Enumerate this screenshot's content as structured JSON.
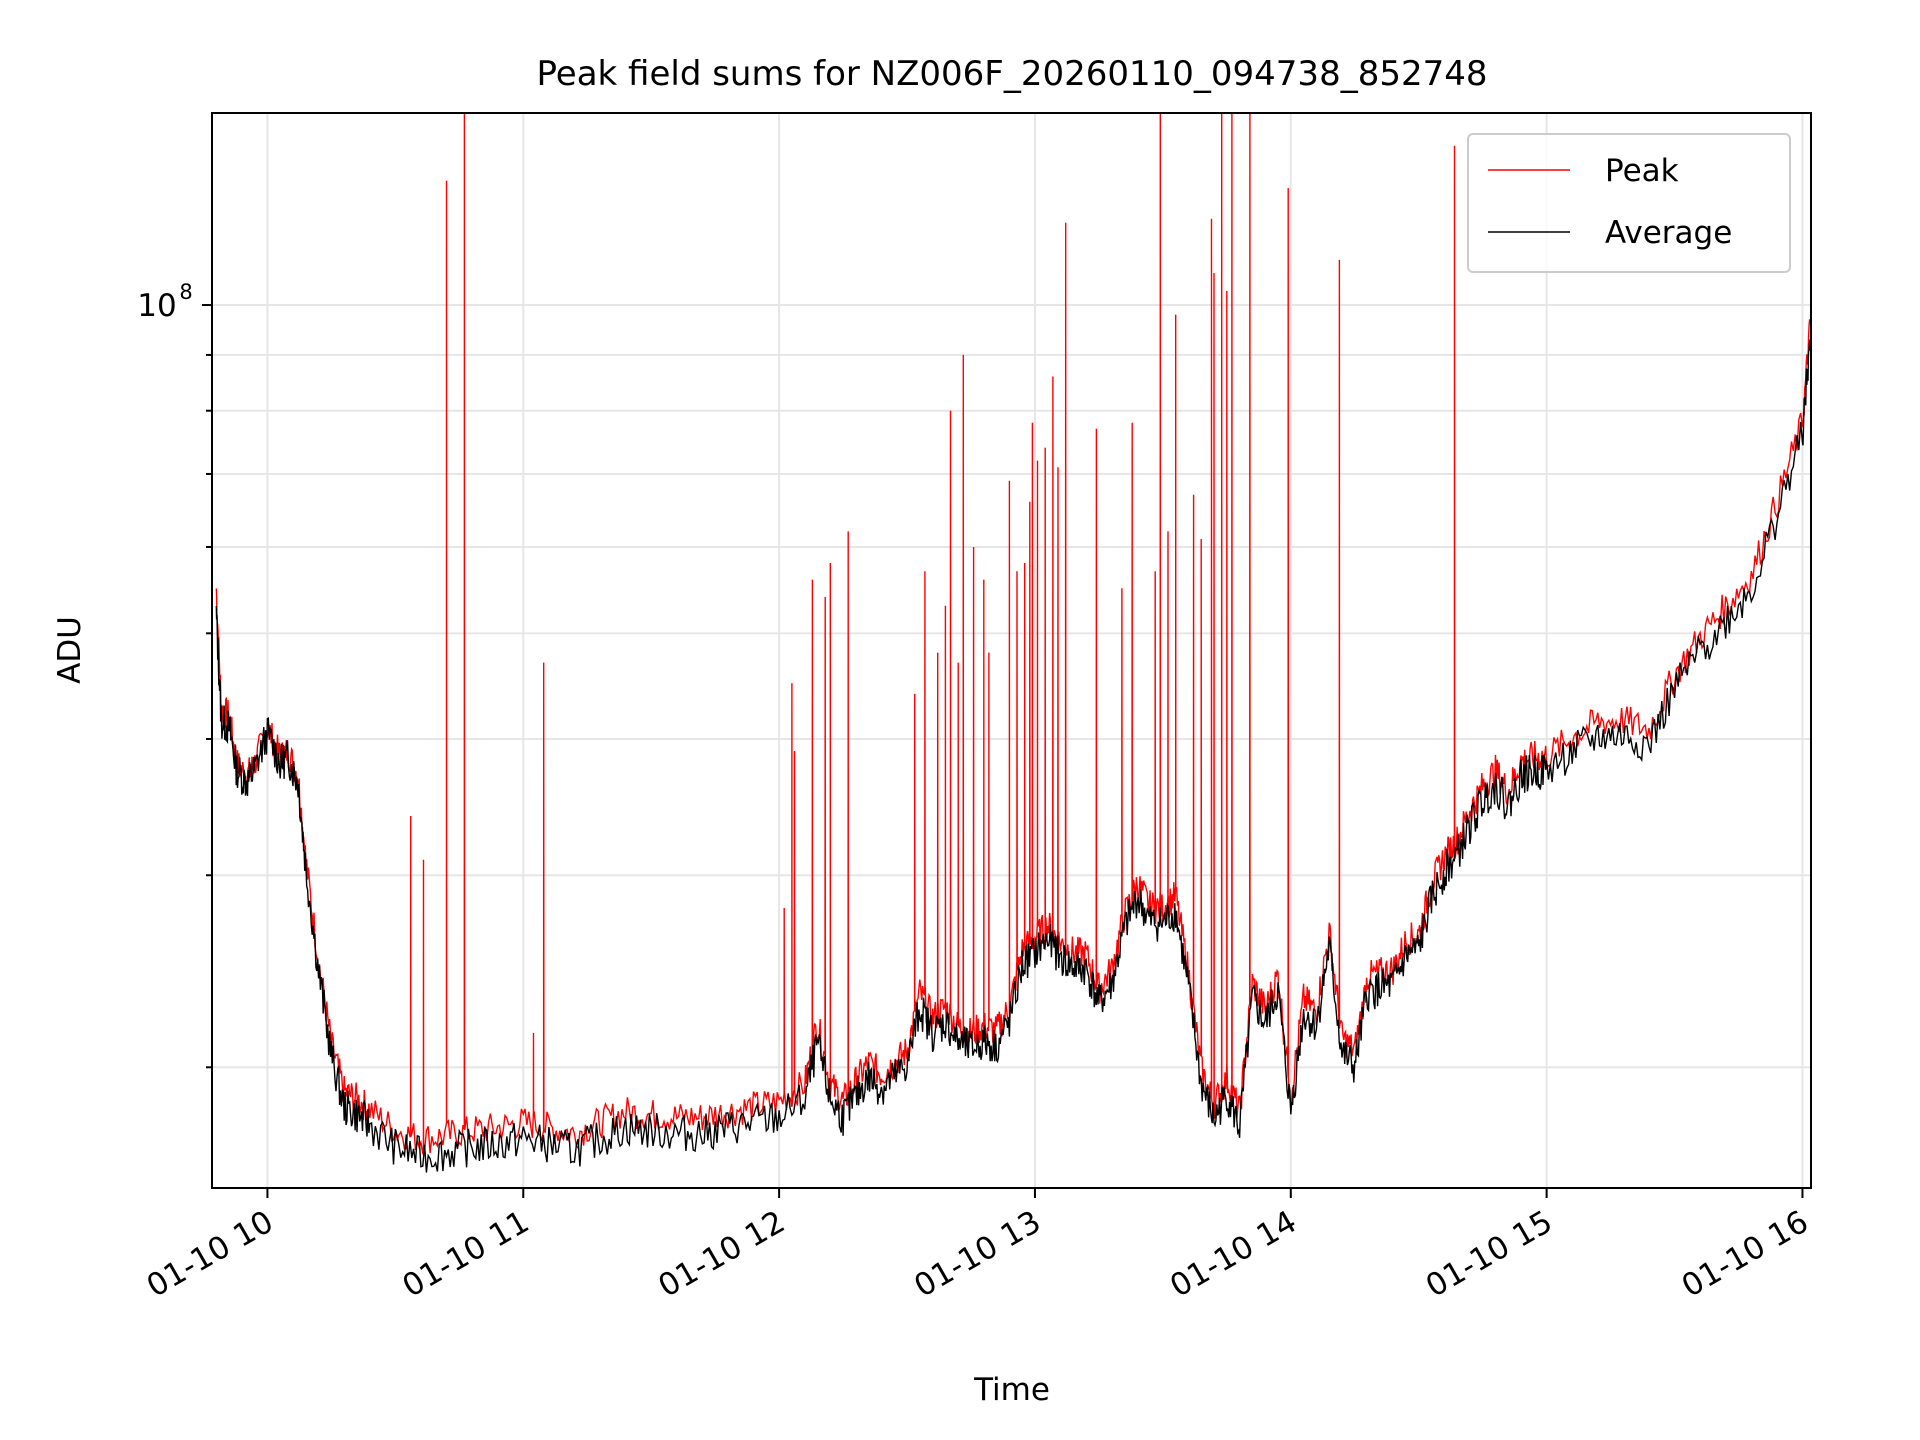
{
  "chart_data": {
    "type": "line",
    "title": "Peak field sums for NZ006F_20260110_094738_852748",
    "xlabel": "Time",
    "ylabel": "ADU",
    "yscale": "log",
    "x_unit": "hours (clock time on 2026-01-10)",
    "xlim": [
      "01-10 09:47",
      "01-10 16:02"
    ],
    "ylim": [
      15500000,
      150000000
    ],
    "x_ticks": [
      "01-10 10",
      "01-10 11",
      "01-10 12",
      "01-10 13",
      "01-10 14",
      "01-10 15",
      "01-10 16"
    ],
    "y_ticks": [
      {
        "value": 100000000,
        "base": "10",
        "exp": "8"
      }
    ],
    "grid": true,
    "legend_position": "top-right",
    "colors": {
      "peak": "#ff0000",
      "average": "#000000"
    },
    "series": [
      {
        "name": "Peak",
        "color": "#ff0000",
        "x": [
          9.8,
          9.82,
          9.85,
          9.88,
          9.92,
          9.95,
          10.0,
          10.05,
          10.08,
          10.12,
          10.15,
          10.2,
          10.25,
          10.3,
          10.35,
          10.4,
          10.5,
          10.6,
          10.7,
          10.8,
          10.9,
          11.0,
          11.1,
          11.2,
          11.3,
          11.4,
          11.5,
          11.6,
          11.7,
          11.8,
          11.9,
          12.0,
          12.1,
          12.15,
          12.2,
          12.25,
          12.3,
          12.35,
          12.4,
          12.45,
          12.5,
          12.55,
          12.6,
          12.65,
          12.7,
          12.75,
          12.8,
          12.85,
          12.9,
          12.95,
          13.0,
          13.05,
          13.1,
          13.15,
          13.2,
          13.25,
          13.3,
          13.35,
          13.4,
          13.45,
          13.5,
          13.55,
          13.6,
          13.65,
          13.7,
          13.75,
          13.8,
          13.85,
          13.9,
          13.95,
          14.0,
          14.05,
          14.1,
          14.15,
          14.2,
          14.25,
          14.3,
          14.35,
          14.4,
          14.45,
          14.5,
          14.55,
          14.6,
          14.65,
          14.7,
          14.75,
          14.8,
          14.85,
          14.9,
          14.95,
          15.0,
          15.1,
          15.2,
          15.3,
          15.4,
          15.5,
          15.6,
          15.7,
          15.8,
          15.9,
          16.0,
          16.03
        ],
        "y": [
          55000000,
          42500000,
          42000000,
          38000000,
          37000000,
          38000000,
          41000000,
          38500000,
          39000000,
          37000000,
          31000000,
          25000000,
          21000000,
          19000000,
          18700000,
          18300000,
          17500000,
          17200000,
          17300000,
          17500000,
          17600000,
          17800000,
          17600000,
          17400000,
          17800000,
          18200000,
          18100000,
          18000000,
          18000000,
          18200000,
          18400000,
          18600000,
          19300000,
          22000000,
          19300000,
          18600000,
          19400000,
          20200000,
          19700000,
          20200000,
          20700000,
          23400000,
          22200000,
          22700000,
          21800000,
          21500000,
          21800000,
          21600000,
          22700000,
          25600000,
          26300000,
          27000000,
          26000000,
          25500000,
          25400000,
          23600000,
          24600000,
          27600000,
          29500000,
          28100000,
          28000000,
          28700000,
          24500000,
          19900000,
          18500000,
          19500000,
          18200000,
          23900000,
          22600000,
          24300000,
          18800000,
          23100000,
          22500000,
          26600000,
          21300000,
          20700000,
          24200000,
          24400000,
          24600000,
          26100000,
          26500000,
          29400000,
          31200000,
          32300000,
          34400000,
          36200000,
          37400000,
          35800000,
          38200000,
          38500000,
          38600000,
          40100000,
          41500000,
          41600000,
          40800000,
          45800000,
          49600000,
          52900000,
          56500000,
          66000000,
          78000000,
          96000000
        ],
        "spikes": [
          {
            "x": 10.56,
            "y": 34000000
          },
          {
            "x": 10.61,
            "y": 31000000
          },
          {
            "x": 10.7,
            "y": 130000000
          },
          {
            "x": 10.77,
            "y": 150000000
          },
          {
            "x": 11.04,
            "y": 21500000
          },
          {
            "x": 11.08,
            "y": 47000000
          },
          {
            "x": 12.02,
            "y": 28000000
          },
          {
            "x": 12.05,
            "y": 45000000
          },
          {
            "x": 12.06,
            "y": 39000000
          },
          {
            "x": 12.13,
            "y": 56000000
          },
          {
            "x": 12.18,
            "y": 54000000
          },
          {
            "x": 12.2,
            "y": 58000000
          },
          {
            "x": 12.27,
            "y": 62000000
          },
          {
            "x": 12.53,
            "y": 44000000
          },
          {
            "x": 12.57,
            "y": 57000000
          },
          {
            "x": 12.62,
            "y": 48000000
          },
          {
            "x": 12.65,
            "y": 53000000
          },
          {
            "x": 12.67,
            "y": 80000000
          },
          {
            "x": 12.7,
            "y": 47000000
          },
          {
            "x": 12.72,
            "y": 90000000
          },
          {
            "x": 12.76,
            "y": 60000000
          },
          {
            "x": 12.8,
            "y": 56000000
          },
          {
            "x": 12.82,
            "y": 48000000
          },
          {
            "x": 12.9,
            "y": 69000000
          },
          {
            "x": 12.93,
            "y": 57000000
          },
          {
            "x": 12.96,
            "y": 58000000
          },
          {
            "x": 12.98,
            "y": 66000000
          },
          {
            "x": 12.99,
            "y": 78000000
          },
          {
            "x": 13.01,
            "y": 72000000
          },
          {
            "x": 13.04,
            "y": 74000000
          },
          {
            "x": 13.07,
            "y": 86000000
          },
          {
            "x": 13.09,
            "y": 71000000
          },
          {
            "x": 13.12,
            "y": 119000000
          },
          {
            "x": 13.24,
            "y": 77000000
          },
          {
            "x": 13.34,
            "y": 55000000
          },
          {
            "x": 13.38,
            "y": 78000000
          },
          {
            "x": 13.47,
            "y": 57000000
          },
          {
            "x": 13.49,
            "y": 150000000
          },
          {
            "x": 13.52,
            "y": 62000000
          },
          {
            "x": 13.55,
            "y": 98000000
          },
          {
            "x": 13.62,
            "y": 67000000
          },
          {
            "x": 13.65,
            "y": 61000000
          },
          {
            "x": 13.69,
            "y": 120000000
          },
          {
            "x": 13.7,
            "y": 107000000
          },
          {
            "x": 13.73,
            "y": 150000000
          },
          {
            "x": 13.75,
            "y": 103000000
          },
          {
            "x": 13.77,
            "y": 150000000
          },
          {
            "x": 13.84,
            "y": 150000000
          },
          {
            "x": 13.99,
            "y": 128000000
          },
          {
            "x": 14.19,
            "y": 110000000
          },
          {
            "x": 14.64,
            "y": 140000000
          }
        ]
      },
      {
        "name": "Average",
        "color": "#000000",
        "x": [
          9.8,
          9.82,
          9.85,
          9.88,
          9.92,
          9.95,
          10.0,
          10.05,
          10.08,
          10.12,
          10.15,
          10.2,
          10.25,
          10.3,
          10.35,
          10.4,
          10.5,
          10.6,
          10.7,
          10.8,
          10.9,
          11.0,
          11.1,
          11.2,
          11.3,
          11.4,
          11.5,
          11.6,
          11.7,
          11.8,
          11.9,
          12.0,
          12.1,
          12.15,
          12.2,
          12.25,
          12.3,
          12.35,
          12.4,
          12.45,
          12.5,
          12.55,
          12.6,
          12.65,
          12.7,
          12.75,
          12.8,
          12.85,
          12.9,
          12.95,
          13.0,
          13.05,
          13.1,
          13.15,
          13.2,
          13.25,
          13.3,
          13.35,
          13.4,
          13.45,
          13.5,
          13.55,
          13.6,
          13.65,
          13.7,
          13.75,
          13.8,
          13.85,
          13.9,
          13.95,
          14.0,
          14.05,
          14.1,
          14.15,
          14.2,
          14.25,
          14.3,
          14.35,
          14.4,
          14.45,
          14.5,
          14.55,
          14.6,
          14.65,
          14.7,
          14.75,
          14.8,
          14.85,
          14.9,
          14.95,
          15.0,
          15.1,
          15.2,
          15.3,
          15.4,
          15.5,
          15.6,
          15.7,
          15.8,
          15.9,
          16.0,
          16.03
        ],
        "y": [
          52000000,
          41500000,
          41000000,
          37500000,
          36500000,
          37500000,
          40500000,
          38000000,
          38500000,
          36500000,
          30500000,
          24500000,
          20500000,
          18400000,
          18100000,
          17700000,
          16900000,
          16600000,
          16700000,
          16900000,
          17000000,
          17200000,
          17000000,
          16800000,
          17200000,
          17600000,
          17500000,
          17400000,
          17400000,
          17600000,
          17800000,
          18000000,
          18700000,
          21000000,
          18700000,
          18000000,
          18800000,
          19600000,
          19100000,
          19600000,
          20100000,
          22700000,
          21500000,
          22000000,
          21100000,
          20800000,
          21100000,
          20900000,
          22000000,
          24800000,
          25500000,
          26200000,
          25200000,
          24700000,
          24600000,
          22900000,
          23800000,
          26800000,
          28600000,
          27200000,
          27100000,
          27800000,
          23700000,
          19300000,
          17900000,
          18900000,
          17600000,
          23100000,
          21900000,
          23500000,
          18200000,
          22400000,
          21800000,
          25800000,
          20600000,
          20000000,
          23400000,
          23600000,
          23800000,
          25300000,
          25700000,
          28500000,
          30200000,
          31300000,
          33300000,
          35100000,
          36300000,
          34700000,
          37000000,
          37300000,
          37400000,
          38900000,
          40200000,
          40300000,
          39500000,
          44400000,
          48100000,
          51300000,
          54800000,
          64000000,
          76000000,
          93000000
        ]
      }
    ]
  }
}
